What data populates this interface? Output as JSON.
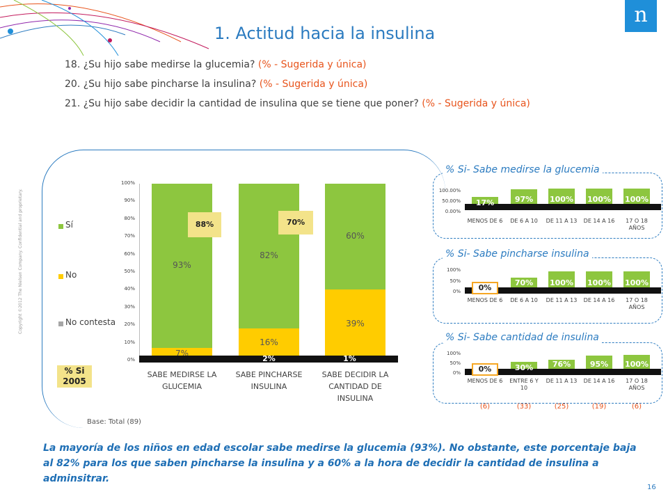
{
  "title": "1. Actitud hacia la insulina",
  "questions": [
    {
      "text": "18. ¿Su hijo sabe medirse la glucemia?",
      "note": "(% - Sugerida y única)"
    },
    {
      "text": "20. ¿Su hijo sabe pincharse la insulina?",
      "note": "(% - Sugerida y única)"
    },
    {
      "text": "21. ¿Su hijo sabe decidir la cantidad de insulina que se tiene que poner?",
      "note": "(% - Sugerida y única)"
    }
  ],
  "logo_letter": "n",
  "copyright": "Copyright ©2012 The Nielsen Company. Confidential and proprietary.",
  "base_note": "Base: Total (89)",
  "conclusion": "La mayoría de los niños en edad escolar sabe medirse la glucemia (93%). No obstante, este porcentaje baja al 82% para los que saben pincharse la insulina y a 60% a la hora de decidir la cantidad de insulina a adminsitrar.",
  "page_number": "16",
  "colors": {
    "si": "#8dc63f",
    "no": "#ffcc00",
    "no_contesta": "#a6a6a6",
    "accent": "#2b7bc0",
    "note": "#e8541c",
    "badge2005": "#f3e38a"
  },
  "legend": {
    "si": "Sí",
    "no": "No",
    "no_contesta": "No contesta",
    "badge_label_1": "% Si",
    "badge_label_2": "2005"
  },
  "chart_data": [
    {
      "type": "bar",
      "stacked": true,
      "categories": [
        "SABE MEDIRSE LA GLUCEMIA",
        "SABE PINCHARSE INSULINA",
        "SABE DECIDIR LA CANTIDAD DE INSULINA"
      ],
      "series": [
        {
          "name": "No contesta",
          "values": [
            0,
            2,
            1
          ],
          "labels": [
            "",
            "2%",
            "1%"
          ]
        },
        {
          "name": "No",
          "values": [
            7,
            16,
            39
          ],
          "labels": [
            "7%",
            "16%",
            "39%"
          ]
        },
        {
          "name": "Sí",
          "values": [
            93,
            82,
            60
          ],
          "labels": [
            "93%",
            "82%",
            "60%"
          ]
        }
      ],
      "yticks": [
        "0%",
        "10%",
        "20%",
        "30%",
        "40%",
        "50%",
        "60%",
        "70%",
        "80%",
        "90%",
        "100%"
      ],
      "ylim": [
        0,
        100
      ],
      "badges_2005": [
        "88%",
        "70%",
        ""
      ],
      "legend_position": "left"
    },
    {
      "type": "bar",
      "title": "% Si- Sabe medirse la glucemia",
      "categories": [
        "MENOS DE 6",
        "DE 6 A 10",
        "DE 11 A 13",
        "DE 14 A 16",
        "17 O 18 AÑOS"
      ],
      "values": [
        17,
        97,
        100,
        100,
        100
      ],
      "labels": [
        "17%",
        "97%",
        "100%",
        "100%",
        "100%"
      ],
      "yticks": [
        "0.00%",
        "50.00%",
        "100.00%"
      ],
      "ylim": [
        0,
        100
      ]
    },
    {
      "type": "bar",
      "title": "% Si- Sabe pincharse insulina",
      "categories": [
        "MENOS DE 6",
        "DE 6 A 10",
        "DE 11 A 13",
        "DE 14 A 16",
        "17 O 18 AÑOS"
      ],
      "values": [
        0,
        70,
        100,
        100,
        100
      ],
      "labels": [
        "0%",
        "70%",
        "100%",
        "100%",
        "100%"
      ],
      "yticks": [
        "0%",
        "50%",
        "100%"
      ],
      "ylim": [
        0,
        100
      ]
    },
    {
      "type": "bar",
      "title": "% Si- Sabe cantidad de insulina",
      "categories": [
        "MENOS DE 6",
        "ENTRE 6 Y 10",
        "DE 11 A 13",
        "DE 14 A 16",
        "17 O 18 AÑOS"
      ],
      "values": [
        0,
        30,
        76,
        95,
        100
      ],
      "labels": [
        "0%",
        "30%",
        "76%",
        "95%",
        "100%"
      ],
      "yticks": [
        "0%",
        "50%",
        "100%"
      ],
      "ylim": [
        0,
        100
      ],
      "bases": [
        "(6)",
        "(33)",
        "(25)",
        "(19)",
        "(6)"
      ]
    }
  ]
}
